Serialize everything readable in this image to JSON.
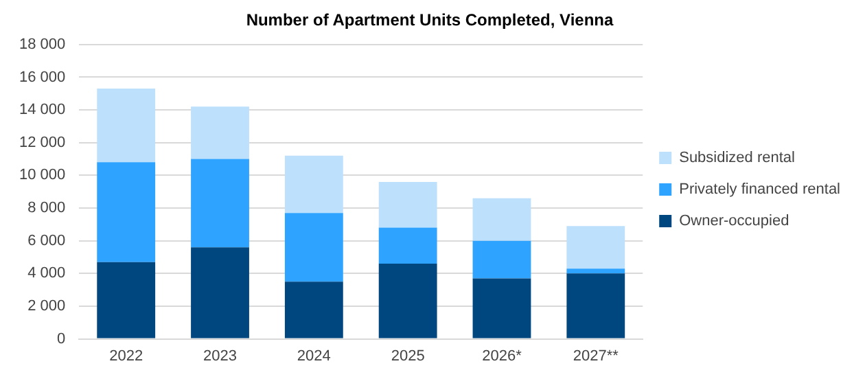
{
  "chart_data": {
    "type": "bar",
    "title": "Number of Apartment Units Completed, Vienna",
    "stacked": true,
    "categories": [
      "2022",
      "2023",
      "2024",
      "2025",
      "2026*",
      "2027**"
    ],
    "series": [
      {
        "name": "Owner-occupied",
        "color": "#00467f",
        "values": [
          4700,
          5600,
          3500,
          4600,
          3700,
          4000
        ]
      },
      {
        "name": "Privately financed rental",
        "color": "#2ea3ff",
        "values": [
          6100,
          5400,
          4200,
          2200,
          2300,
          300
        ]
      },
      {
        "name": "Subsidized rental",
        "color": "#bde0fc",
        "values": [
          4500,
          3200,
          3500,
          2800,
          2600,
          2600
        ]
      }
    ],
    "ylim": [
      0,
      18000
    ],
    "yticks": [
      {
        "value": 0,
        "label": "0"
      },
      {
        "value": 2000,
        "label": "2 000"
      },
      {
        "value": 4000,
        "label": "4 000"
      },
      {
        "value": 6000,
        "label": "6 000"
      },
      {
        "value": 8000,
        "label": "8 000"
      },
      {
        "value": 10000,
        "label": "10 000"
      },
      {
        "value": 12000,
        "label": "12 000"
      },
      {
        "value": 14000,
        "label": "14 000"
      },
      {
        "value": 16000,
        "label": "16 000"
      },
      {
        "value": 18000,
        "label": "18 000"
      }
    ],
    "grid": "y",
    "legend": "right"
  }
}
